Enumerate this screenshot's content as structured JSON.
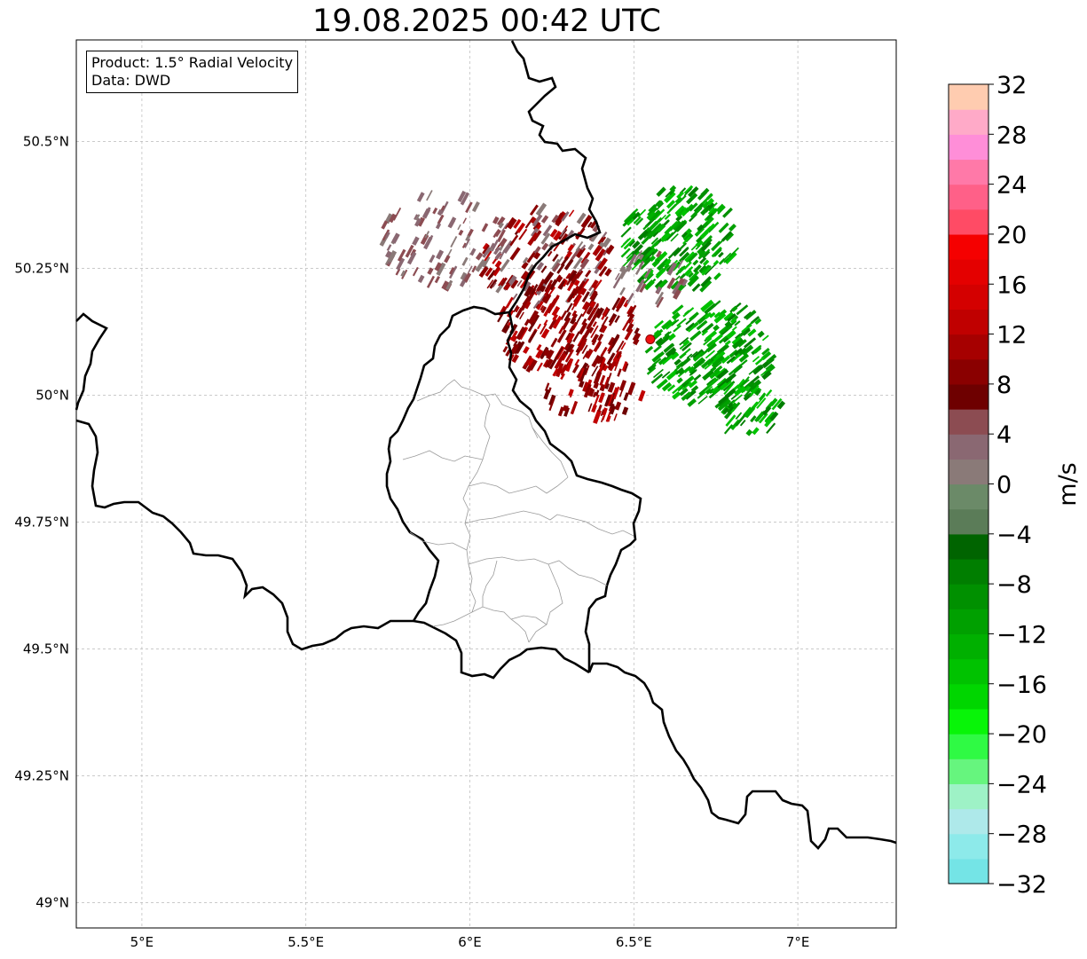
{
  "title": "19.08.2025 00:42 UTC",
  "info_box": {
    "product": "Product: 1.5° Radial Velocity",
    "data": "Data: DWD"
  },
  "map": {
    "lon_range": [
      4.8,
      7.3
    ],
    "lat_range": [
      48.95,
      50.7
    ],
    "lon_ticks": [
      {
        "value": 5.0,
        "label": "5°E"
      },
      {
        "value": 5.5,
        "label": "5.5°E"
      },
      {
        "value": 6.0,
        "label": "6°E"
      },
      {
        "value": 6.5,
        "label": "6.5°E"
      },
      {
        "value": 7.0,
        "label": "7°E"
      }
    ],
    "lat_ticks": [
      {
        "value": 50.5,
        "label": "50.5°N"
      },
      {
        "value": 50.25,
        "label": "50.25°N"
      },
      {
        "value": 50.0,
        "label": "50°N"
      },
      {
        "value": 49.75,
        "label": "49.75°N"
      },
      {
        "value": 49.5,
        "label": "49.5°N"
      },
      {
        "value": 49.25,
        "label": "49.25°N"
      },
      {
        "value": 49.0,
        "label": "49°N"
      }
    ],
    "grid": true,
    "radar_site": {
      "lon": 6.55,
      "lat": 50.11,
      "color": "#ee1111"
    }
  },
  "colorbar": {
    "unit": "m/s",
    "min": -32,
    "max": 32,
    "step": 4,
    "tick_labels": [
      "32",
      "28",
      "24",
      "20",
      "16",
      "12",
      "8",
      "4",
      "0",
      "−4",
      "−8",
      "−12",
      "−16",
      "−20",
      "−24",
      "−28",
      "−32"
    ],
    "colors_bottom_to_top": [
      "#74e4e6",
      "#8deaea",
      "#aee9ea",
      "#9ef2c6",
      "#66f57e",
      "#2ffa44",
      "#08f508",
      "#00d600",
      "#00c200",
      "#00b000",
      "#00a000",
      "#009000",
      "#007e00",
      "#006400",
      "#5b7c58",
      "#6b8a68",
      "#8a7a78",
      "#8a6872",
      "#8c4c52",
      "#6e0000",
      "#8a0000",
      "#a60000",
      "#c00000",
      "#d40000",
      "#e40000",
      "#f50000",
      "#ff4b65",
      "#ff6088",
      "#ff79a8",
      "#ff8ed8",
      "#ffaac8",
      "#ffccb0"
    ]
  }
}
